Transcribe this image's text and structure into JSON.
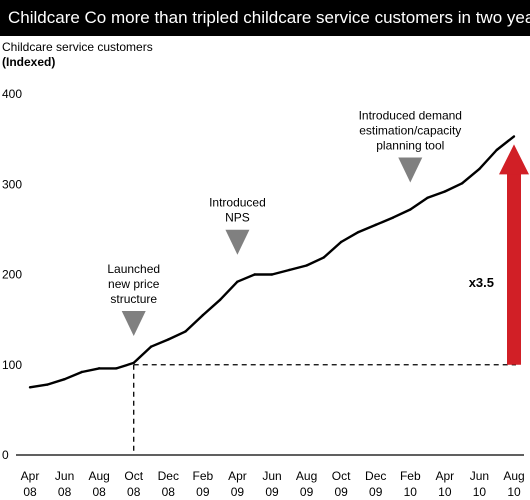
{
  "title": "Childcare Co more than tripled childcare service customers in two years",
  "chart_data": {
    "type": "line",
    "ylabel": "Childcare service customers",
    "ylabel_units": "(Indexed)",
    "ylim": [
      0,
      400
    ],
    "yticks": [
      "400",
      "300",
      "200",
      "100",
      "0"
    ],
    "x_ticks": [
      {
        "month": "Apr",
        "year": "08"
      },
      {
        "month": "Jun",
        "year": "08"
      },
      {
        "month": "Aug",
        "year": "08"
      },
      {
        "month": "Oct",
        "year": "08"
      },
      {
        "month": "Dec",
        "year": "08"
      },
      {
        "month": "Feb",
        "year": "09"
      },
      {
        "month": "Apr",
        "year": "09"
      },
      {
        "month": "Jun",
        "year": "09"
      },
      {
        "month": "Aug",
        "year": "09"
      },
      {
        "month": "Oct",
        "year": "09"
      },
      {
        "month": "Dec",
        "year": "09"
      },
      {
        "month": "Feb",
        "year": "10"
      },
      {
        "month": "Apr",
        "year": "10"
      },
      {
        "month": "Jun",
        "year": "10"
      },
      {
        "month": "Aug",
        "year": "10"
      }
    ],
    "series": [
      {
        "values": [
          75,
          78,
          84,
          92,
          96,
          96,
          102,
          120,
          128,
          137,
          155,
          172,
          192,
          200,
          200,
          205,
          210,
          219,
          236,
          247,
          255,
          263,
          272,
          285,
          292,
          301,
          317,
          338,
          353
        ]
      }
    ],
    "baseline_value": 100,
    "annotations": [
      {
        "lines": [
          "Launched",
          "new price",
          "structure"
        ],
        "at_month_index": 6
      },
      {
        "lines": [
          "Introduced",
          "NPS"
        ],
        "at_month_index": 12
      },
      {
        "lines": [
          "Introduced demand",
          "estimation/capacity",
          "planning tool"
        ],
        "at_month_index": 22
      }
    ],
    "growth_label": "x3.5",
    "colors": {
      "line": "#000000",
      "arrow": "#d11f26",
      "marker": "#808080",
      "title_bg": "#000000"
    }
  }
}
